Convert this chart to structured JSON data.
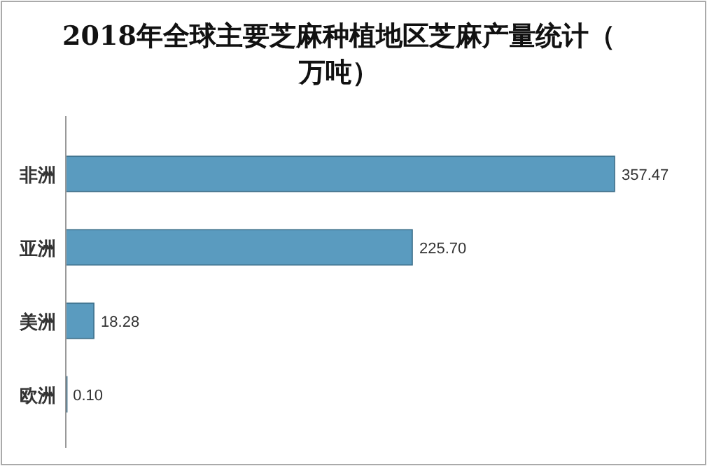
{
  "chart_data": {
    "type": "bar",
    "orientation": "horizontal",
    "title": "2018年全球主要芝麻种植地区芝麻产量统计（万吨）",
    "categories": [
      "非洲",
      "亚洲",
      "美洲",
      "欧洲"
    ],
    "values": [
      357.47,
      225.7,
      18.28,
      0.1
    ],
    "value_labels": [
      "357.47",
      "225.70",
      "18.28",
      "0.10"
    ],
    "color": "#5a9bbf",
    "grid": false
  }
}
